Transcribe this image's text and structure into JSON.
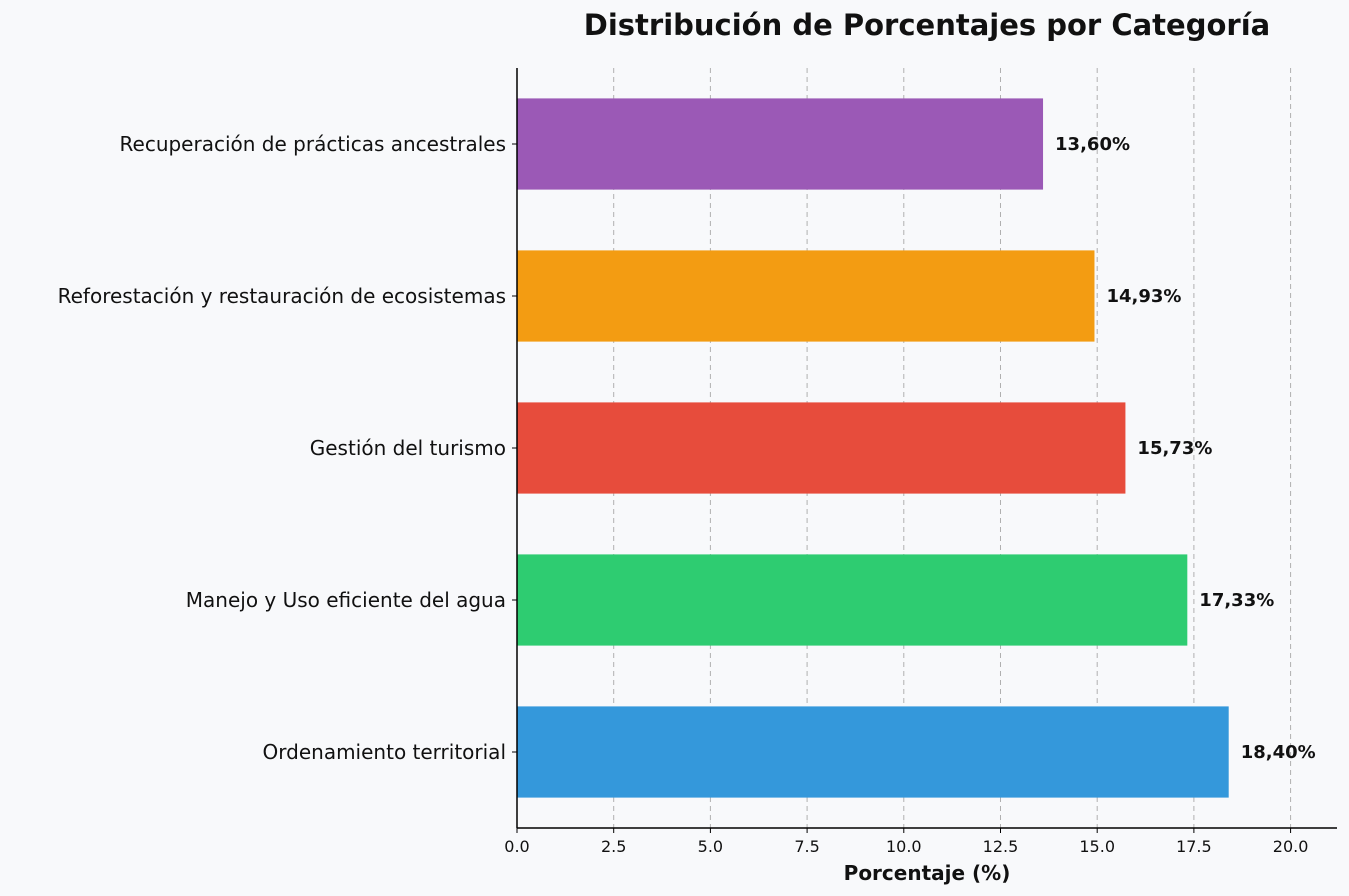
{
  "chart_data": {
    "type": "bar",
    "orientation": "horizontal",
    "title": "Distribución de Porcentajes por Categoría",
    "xlabel": "Porcentaje (%)",
    "ylabel": "",
    "categories": [
      "Recuperación de prácticas ancestrales",
      "Reforestación y restauración de ecosistemas",
      "Gestión del turismo",
      "Manejo y Uso eficiente del agua",
      "Ordenamiento territorial"
    ],
    "values": [
      13.6,
      14.93,
      15.73,
      17.33,
      18.4
    ],
    "value_labels": [
      "13,60%",
      "14,93%",
      "15,73%",
      "17,33%",
      "18,40%"
    ],
    "colors": [
      "#9b59b6",
      "#f39c12",
      "#e74c3c",
      "#2ecc71",
      "#3498db"
    ],
    "xlim": [
      0,
      21.2
    ],
    "xticks": [
      "0.0",
      "2.5",
      "5.0",
      "7.5",
      "10.0",
      "12.5",
      "15.0",
      "17.5",
      "20.0"
    ],
    "grid": "vertical dashed"
  }
}
